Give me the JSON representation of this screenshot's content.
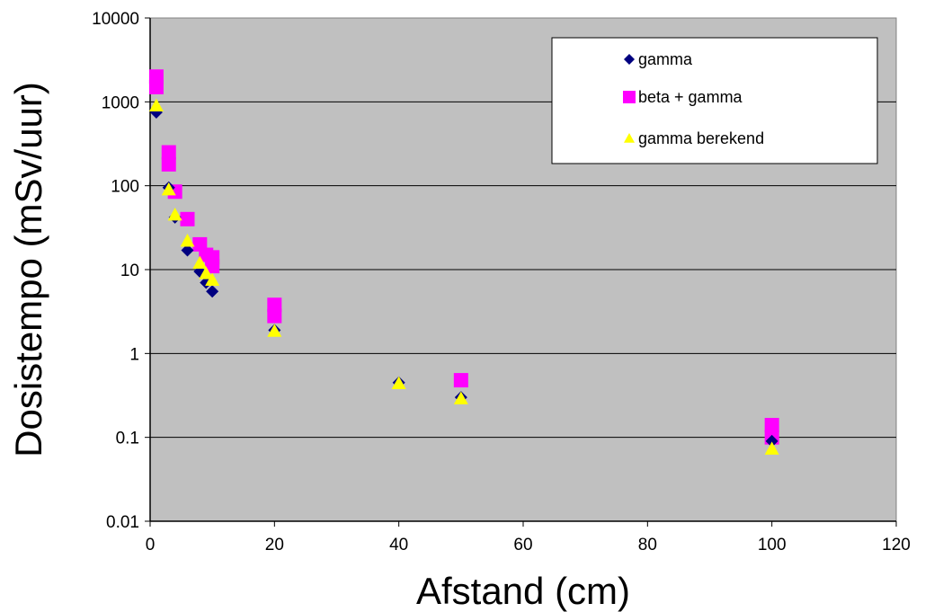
{
  "chart_data": {
    "type": "scatter",
    "title": "",
    "xlabel": "Afstand (cm)",
    "ylabel": "Dosistempo (mSv/uur)",
    "xlim": [
      0,
      120
    ],
    "ylim": [
      0.01,
      10000
    ],
    "yscale": "log",
    "x_ticks": [
      "0",
      "20",
      "40",
      "60",
      "80",
      "100",
      "120"
    ],
    "y_ticks": [
      "0.01",
      "0.1",
      "1",
      "10",
      "100",
      "1000",
      "10000"
    ],
    "grid": "horizontal",
    "plot_background": "#c0c0c0",
    "legend_position": "top-right",
    "series": [
      {
        "name": "gamma",
        "marker": "diamond",
        "color": "#000080",
        "points": [
          {
            "x": 1,
            "y": 750
          },
          {
            "x": 3,
            "y": 95
          },
          {
            "x": 4,
            "y": 42
          },
          {
            "x": 6,
            "y": 17
          },
          {
            "x": 8,
            "y": 9.5
          },
          {
            "x": 9,
            "y": 7
          },
          {
            "x": 10,
            "y": 5.5
          },
          {
            "x": 20,
            "y": 1.9
          },
          {
            "x": 40,
            "y": 0.45
          },
          {
            "x": 50,
            "y": 0.3
          },
          {
            "x": 100,
            "y": 0.09
          }
        ]
      },
      {
        "name": "beta + gamma",
        "marker": "square",
        "color": "#ff00ff",
        "points": [
          {
            "x": 1,
            "y": 2000
          },
          {
            "x": 1,
            "y": 1500
          },
          {
            "x": 3,
            "y": 250
          },
          {
            "x": 3,
            "y": 180
          },
          {
            "x": 4,
            "y": 85
          },
          {
            "x": 6,
            "y": 40
          },
          {
            "x": 8,
            "y": 20
          },
          {
            "x": 9,
            "y": 15
          },
          {
            "x": 10,
            "y": 14
          },
          {
            "x": 10,
            "y": 11
          },
          {
            "x": 20,
            "y": 3.8
          },
          {
            "x": 20,
            "y": 2.8
          },
          {
            "x": 50,
            "y": 0.48
          },
          {
            "x": 100,
            "y": 0.14
          },
          {
            "x": 100,
            "y": 0.1
          }
        ]
      },
      {
        "name": "gamma berekend",
        "marker": "triangle",
        "color": "#ffff00",
        "points": [
          {
            "x": 1,
            "y": 900
          },
          {
            "x": 3,
            "y": 90
          },
          {
            "x": 4,
            "y": 45
          },
          {
            "x": 6,
            "y": 22
          },
          {
            "x": 8,
            "y": 12
          },
          {
            "x": 9,
            "y": 9
          },
          {
            "x": 10,
            "y": 7.5
          },
          {
            "x": 20,
            "y": 1.85
          },
          {
            "x": 40,
            "y": 0.44
          },
          {
            "x": 50,
            "y": 0.29
          },
          {
            "x": 100,
            "y": 0.073
          }
        ]
      }
    ]
  }
}
